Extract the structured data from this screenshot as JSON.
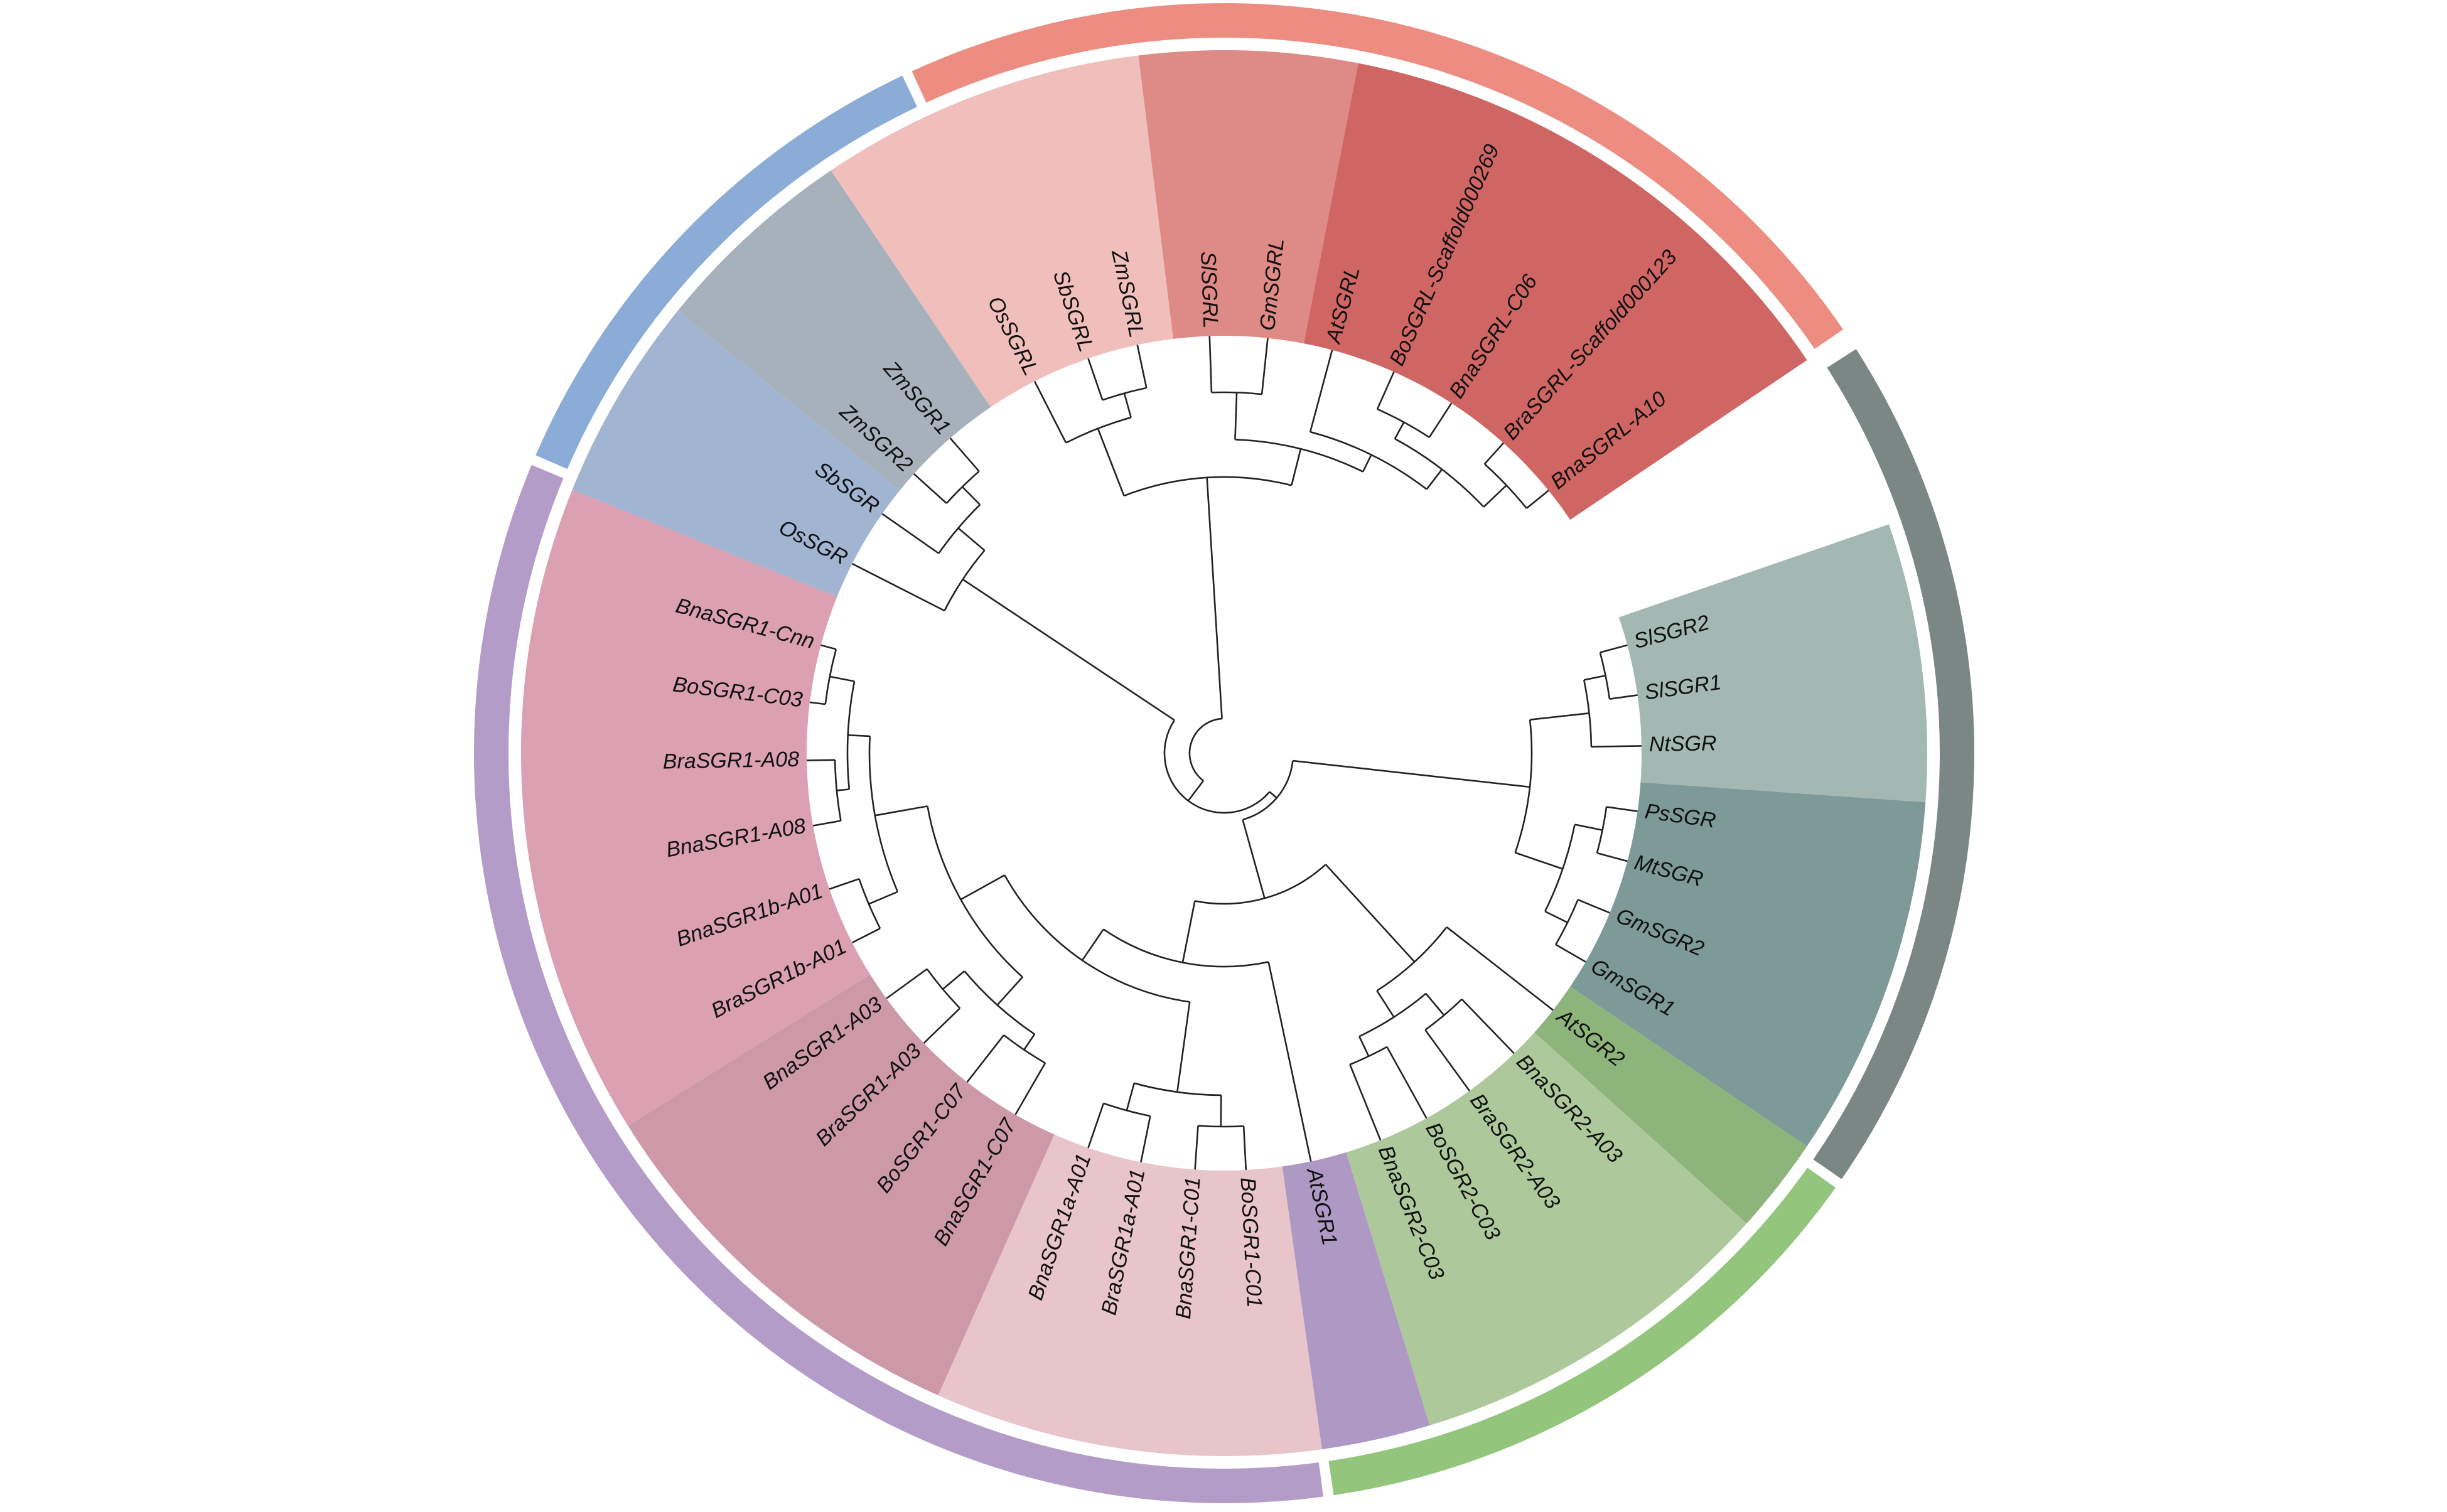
{
  "tree": {
    "tips": [
      {
        "label": "SlSGR2",
        "angle": -15
      },
      {
        "label": "SlSGR1",
        "angle": -8
      },
      {
        "label": "NtSGR",
        "angle": -1
      },
      {
        "label": "PsSGR",
        "angle": 8
      },
      {
        "label": "MtSGR",
        "angle": 15
      },
      {
        "label": "GmSGR2",
        "angle": 22.5
      },
      {
        "label": "GmSGR1",
        "angle": 30
      },
      {
        "label": "AtSGR2",
        "angle": 38
      },
      {
        "label": "BnaSGR2-A03",
        "angle": 46
      },
      {
        "label": "BraSGR2-A03",
        "angle": 54
      },
      {
        "label": "BoSGR2-C03",
        "angle": 61
      },
      {
        "label": "BnaSGR2-C03",
        "angle": 68
      },
      {
        "label": "AtSGR1",
        "angle": 78
      },
      {
        "label": "BoSGR1-C01",
        "angle": 87
      },
      {
        "label": "BnaSGR1-C01",
        "angle": 94
      },
      {
        "label": "BraSGR1a-A01",
        "angle": 101.5
      },
      {
        "label": "BnaSGR1a-A01",
        "angle": 109
      },
      {
        "label": "BnaSGR1-C07",
        "angle": 120
      },
      {
        "label": "BoSGR1-C07",
        "angle": 128
      },
      {
        "label": "BraSGR1-A03",
        "angle": 136
      },
      {
        "label": "BnaSGR1-A03",
        "angle": 144
      },
      {
        "label": "BraSGR1b-A01",
        "angle": 153
      },
      {
        "label": "BnaSGR1b-A01",
        "angle": 161
      },
      {
        "label": "BnaSGR1-A08",
        "angle": 170
      },
      {
        "label": "BraSGR1-A08",
        "angle": 179
      },
      {
        "label": "BoSGR1-C03",
        "angle": 187
      },
      {
        "label": "BnaSGR1-Cnn",
        "angle": 195
      },
      {
        "label": "OsSGR",
        "angle": 207
      },
      {
        "label": "SbSGR",
        "angle": 215
      },
      {
        "label": "ZmSGR2",
        "angle": 222
      },
      {
        "label": "ZmSGR1",
        "angle": 229
      },
      {
        "label": "OsSGRL",
        "angle": 243
      },
      {
        "label": "SbSGRL",
        "angle": 251
      },
      {
        "label": "ZmSGRL",
        "angle": 258
      },
      {
        "label": "SlSGRL",
        "angle": 268
      },
      {
        "label": "GmSGRL",
        "angle": 276
      },
      {
        "label": "AtSGRL",
        "angle": 285
      },
      {
        "label": "BoSGRL-Scaffold000269",
        "angle": 294
      },
      {
        "label": "BnaSGRL-C06",
        "angle": 303
      },
      {
        "label": "BraSGRL-Scaffold000123",
        "angle": 312
      },
      {
        "label": "BnaSGRL-A10",
        "angle": 321
      }
    ],
    "clade_sectors": [
      {
        "name": "sector-solanaceae",
        "start": -19,
        "end": 4,
        "color": "#a3b8b2"
      },
      {
        "name": "sector-legume",
        "start": 4,
        "end": 34,
        "color": "#7e9a98"
      },
      {
        "name": "sector-atsgr2",
        "start": 34,
        "end": 42,
        "color": "#8db47b"
      },
      {
        "name": "sector-brassica-sgr2",
        "start": 42,
        "end": 73,
        "color": "#adc99c"
      },
      {
        "name": "sector-atsgr1",
        "start": 73,
        "end": 82,
        "color": "#ae98c4"
      },
      {
        "name": "sector-sgr1-c01",
        "start": 82,
        "end": 114,
        "color": "#e8c4cb"
      },
      {
        "name": "sector-sgr1-c07",
        "start": 114,
        "end": 148,
        "color": "#cd99a9"
      },
      {
        "name": "sector-sgr1-a08",
        "start": 148,
        "end": 202,
        "color": "#dba0b2"
      },
      {
        "name": "sector-monocot-sgr-light",
        "start": 202,
        "end": 219,
        "color": "#a1b5d2"
      },
      {
        "name": "sector-monocot-sgr",
        "start": 219,
        "end": 236,
        "color": "#a7b1bc"
      },
      {
        "name": "sector-monocot-sgrl",
        "start": 236,
        "end": 263,
        "color": "#f0bfbc"
      },
      {
        "name": "sector-dicot-sgrl",
        "start": 263,
        "end": 281,
        "color": "#de8a86"
      },
      {
        "name": "sector-brassica-sgrl",
        "start": 281,
        "end": 326,
        "color": "#d06664"
      }
    ],
    "outer_arcs": [
      {
        "name": "arc-sgrl",
        "start": 245,
        "end": 326,
        "color": "#ed8d82"
      },
      {
        "name": "arc-dicot-sgr",
        "start": -33,
        "end": 35,
        "color": "#7a8785"
      },
      {
        "name": "arc-brassica-sgr2",
        "start": 35,
        "end": 82,
        "color": "#94c57d"
      },
      {
        "name": "arc-sgr1",
        "start": 82,
        "end": 203,
        "color": "#b39dc8"
      },
      {
        "name": "arc-monocot-sgr",
        "start": 203,
        "end": 245,
        "color": "#8bacd6"
      }
    ],
    "nodes": [
      {
        "id": "n_sl",
        "r": 620,
        "children": [
          "SlSGR2",
          "SlSGR1"
        ]
      },
      {
        "id": "n_sol",
        "r": 585,
        "children": [
          "n_sl",
          "NtSGR"
        ]
      },
      {
        "id": "n_psmt",
        "r": 615,
        "children": [
          "PsSGR",
          "MtSGR"
        ]
      },
      {
        "id": "n_gm",
        "r": 610,
        "children": [
          "GmSGR2",
          "GmSGR1"
        ]
      },
      {
        "id": "n_leg",
        "r": 570,
        "children": [
          "n_psmt",
          "n_gm"
        ]
      },
      {
        "id": "n_sol_leg",
        "r": 490,
        "children": [
          "n_sol",
          "n_leg"
        ]
      },
      {
        "id": "n_bra2a",
        "r": 545,
        "children": [
          "BnaSGR2-A03",
          "BraSGR2-A03"
        ]
      },
      {
        "id": "n_bra2c",
        "r": 535,
        "children": [
          "BoSGR2-C03",
          "BnaSGR2-C03"
        ]
      },
      {
        "id": "n_bra2",
        "r": 500,
        "children": [
          "n_bra2a",
          "n_bra2c"
        ]
      },
      {
        "id": "n_sgr2",
        "r": 450,
        "children": [
          "AtSGR2",
          "n_bra2"
        ]
      },
      {
        "id": "n_c01",
        "r": 595,
        "children": [
          "BoSGR1-C01",
          "BnaSGR1-C01"
        ]
      },
      {
        "id": "n_a01a",
        "r": 590,
        "children": [
          "BraSGR1a-A01",
          "BnaSGR1a-A01"
        ]
      },
      {
        "id": "n_sgr1a",
        "r": 545,
        "children": [
          "n_c01",
          "n_a01a"
        ]
      },
      {
        "id": "n_c07",
        "r": 570,
        "children": [
          "BnaSGR1-C07",
          "BoSGR1-C07"
        ]
      },
      {
        "id": "n_a03",
        "r": 585,
        "children": [
          "BraSGR1-A03",
          "BnaSGR1-A03"
        ]
      },
      {
        "id": "n_c07a03",
        "r": 540,
        "children": [
          "n_c07",
          "n_a03"
        ]
      },
      {
        "id": "n_b01",
        "r": 615,
        "children": [
          "BraSGR1b-A01",
          "BnaSGR1b-A01"
        ]
      },
      {
        "id": "n_a08",
        "r": 620,
        "children": [
          "BnaSGR1-A08",
          "BraSGR1-A08"
        ]
      },
      {
        "id": "n_c03",
        "r": 640,
        "children": [
          "BoSGR1-C03",
          "BnaSGR1-Cnn"
        ]
      },
      {
        "id": "n_a08c03",
        "r": 600,
        "children": [
          "n_a08",
          "n_c03"
        ]
      },
      {
        "id": "n_a08b01",
        "r": 565,
        "children": [
          "n_b01",
          "n_a08c03"
        ]
      },
      {
        "id": "n_sgr1b",
        "r": 480,
        "children": [
          "n_c07a03",
          "n_a08b01"
        ]
      },
      {
        "id": "n_sgr1bra",
        "r": 400,
        "children": [
          "n_sgr1a",
          "n_sgr1b"
        ]
      },
      {
        "id": "n_sgr1",
        "r": 340,
        "children": [
          "AtSGR1",
          "n_sgr1bra"
        ]
      },
      {
        "id": "n_dicot_sgr12",
        "r": 240,
        "children": [
          "n_sgr2",
          "n_sgr1"
        ]
      },
      {
        "id": "n_dicot_sgr",
        "r": 110,
        "children": [
          "n_sol_leg",
          "n_dicot_sgr12"
        ]
      },
      {
        "id": "n_zm",
        "r": 595,
        "children": [
          "ZmSGR2",
          "ZmSGR1"
        ]
      },
      {
        "id": "n_sbzm",
        "r": 555,
        "children": [
          "SbSGR",
          "n_zm"
        ]
      },
      {
        "id": "n_msgr",
        "r": 500,
        "children": [
          "OsSGR",
          "n_sbzm"
        ]
      },
      {
        "id": "n_sbzml",
        "r": 595,
        "children": [
          "SbSGRL",
          "ZmSGRL"
        ]
      },
      {
        "id": "n_msgrl",
        "r": 555,
        "children": [
          "OsSGRL",
          "n_sbzml"
        ]
      },
      {
        "id": "n_slgm",
        "r": 575,
        "children": [
          "SlSGRL",
          "GmSGRL"
        ]
      },
      {
        "id": "n_scaf",
        "r": 620,
        "children": [
          "BraSGRL-Scaffold000123",
          "BnaSGRL-A10"
        ]
      },
      {
        "id": "n_bo_c06",
        "r": 600,
        "children": [
          "BoSGRL-Scaffold000269",
          "BnaSGRL-C06"
        ]
      },
      {
        "id": "n_brasgrl",
        "r": 570,
        "children": [
          "n_bo_c06",
          "n_scaf"
        ]
      },
      {
        "id": "n_atbra",
        "r": 530,
        "children": [
          "AtSGRL",
          "n_brasgrl"
        ]
      },
      {
        "id": "n_dsgrl",
        "r": 500,
        "children": [
          "n_slgm",
          "n_atbra"
        ]
      },
      {
        "id": "n_sgrl",
        "r": 440,
        "children": [
          "n_msgrl",
          "n_dsgrl"
        ]
      },
      {
        "id": "n_sgr_all",
        "r": 95,
        "children": [
          "n_msgr",
          "n_dicot_sgr"
        ]
      },
      {
        "id": "n_root",
        "r": 55,
        "children": [
          "n_sgrl",
          "n_sgr_all"
        ]
      }
    ]
  }
}
